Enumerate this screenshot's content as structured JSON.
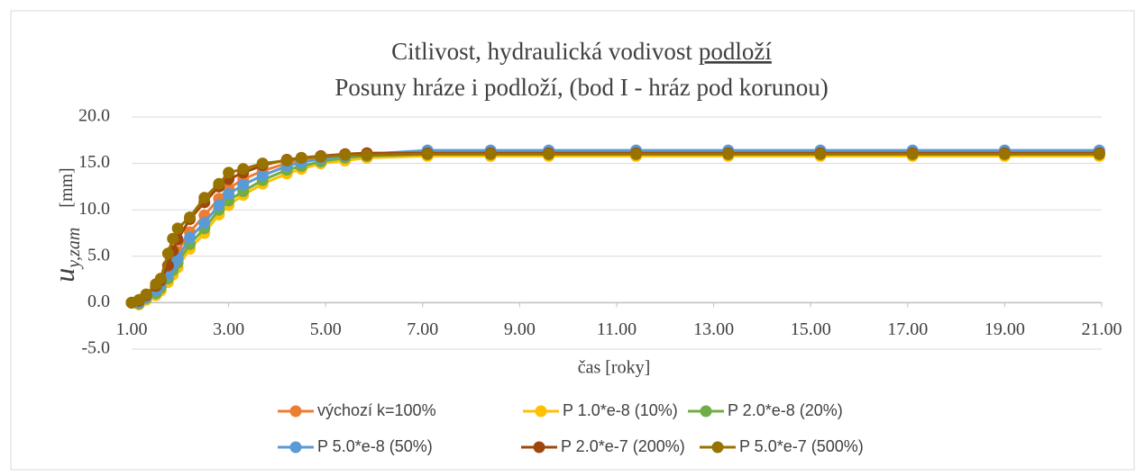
{
  "chart_data": {
    "type": "line",
    "title": [
      "Citlivost, hydraulická vodivost",
      "podloží"
    ],
    "subtitle": "Posuny hráze i podloží, (bod I - hráz pod korunou)",
    "xlabel": "čas [roky]",
    "ylabel": "u",
    "ylabel_sub": "y,zam",
    "ylabel_unit": "[mm]",
    "x": [
      1.0,
      1.15,
      1.3,
      1.5,
      1.6,
      1.75,
      1.85,
      1.95,
      2.2,
      2.5,
      2.8,
      3.0,
      3.3,
      3.7,
      4.2,
      4.5,
      4.9,
      5.4,
      5.85,
      7.1,
      8.4,
      9.6,
      11.4,
      13.3,
      15.2,
      17.1,
      19.0,
      20.95
    ],
    "series": [
      {
        "name": "výchozí k=100%",
        "color": "#ED7D31",
        "values": [
          0,
          0.1,
          0.7,
          1.6,
          2.3,
          3.5,
          4.6,
          5.5,
          7.6,
          9.4,
          11.2,
          12.3,
          13.3,
          14.2,
          15.0,
          15.4,
          15.7,
          16.0,
          16.1,
          16.2,
          16.2,
          16.2,
          16.2,
          16.2,
          16.2,
          16.2,
          16.2,
          16.2
        ]
      },
      {
        "name": "P 1.0*e-8 (10%)",
        "color": "#FFC000",
        "values": [
          0,
          -0.2,
          0.3,
          0.8,
          1.3,
          2.2,
          3.0,
          3.8,
          5.8,
          7.5,
          9.5,
          10.5,
          11.6,
          12.8,
          13.9,
          14.4,
          15.0,
          15.3,
          15.6,
          15.8,
          15.8,
          15.8,
          15.8,
          15.8,
          15.8,
          15.8,
          15.8,
          15.8
        ]
      },
      {
        "name": "P 2.0*e-8 (20%)",
        "color": "#70AD47",
        "values": [
          0,
          -0.1,
          0.5,
          1.0,
          1.6,
          2.6,
          3.5,
          4.3,
          6.3,
          8.0,
          10.0,
          11.0,
          12.0,
          13.2,
          14.3,
          14.7,
          15.2,
          15.6,
          15.8,
          16.0,
          16.0,
          16.0,
          16.0,
          16.0,
          16.0,
          16.0,
          16.0,
          16.0
        ]
      },
      {
        "name": "P 5.0*e-8 (50%)",
        "color": "#5B9BD5",
        "values": [
          0,
          0,
          0.6,
          1.3,
          2.0,
          3.0,
          4.0,
          4.8,
          7.0,
          8.6,
          10.5,
          11.7,
          12.7,
          13.7,
          14.7,
          15.1,
          15.5,
          15.8,
          16.0,
          16.4,
          16.4,
          16.4,
          16.4,
          16.4,
          16.4,
          16.4,
          16.4,
          16.4
        ]
      },
      {
        "name": "P 2.0*e-7 (200%)",
        "color": "#9E480E",
        "values": [
          0,
          0.2,
          0.8,
          1.8,
          2.4,
          4.0,
          5.6,
          6.8,
          9.0,
          10.8,
          12.5,
          13.3,
          14.0,
          14.8,
          15.4,
          15.6,
          15.8,
          16.0,
          16.1,
          16.1,
          16.1,
          16.1,
          16.1,
          16.1,
          16.1,
          16.1,
          16.1,
          16.1
        ]
      },
      {
        "name": "P 5.0*e-7 (500%)",
        "color": "#997300",
        "values": [
          0,
          0.3,
          0.9,
          2.0,
          2.6,
          5.3,
          6.9,
          8.0,
          9.2,
          11.3,
          12.8,
          14.0,
          14.4,
          15.0,
          15.3,
          15.6,
          15.7,
          15.9,
          15.9,
          16.0,
          16.0,
          16.0,
          16.0,
          16.0,
          16.0,
          16.0,
          16.0,
          16.0
        ]
      }
    ],
    "xlim": [
      1,
      21
    ],
    "xticks": [
      {
        "value": 1,
        "label": "1.00"
      },
      {
        "value": 3,
        "label": "3.00"
      },
      {
        "value": 5,
        "label": "5.00"
      },
      {
        "value": 7,
        "label": "7.00"
      },
      {
        "value": 9,
        "label": "9.00"
      },
      {
        "value": 11,
        "label": "11.00"
      },
      {
        "value": 13,
        "label": "13.00"
      },
      {
        "value": 15,
        "label": "15.00"
      },
      {
        "value": 17,
        "label": "17.00"
      },
      {
        "value": 19,
        "label": "19.00"
      },
      {
        "value": 21,
        "label": "21.00"
      }
    ],
    "ylim": [
      -5,
      20
    ],
    "yticks": [
      {
        "value": -5,
        "label": "-5.0"
      },
      {
        "value": 0,
        "label": "0.0"
      },
      {
        "value": 5,
        "label": "5.0"
      },
      {
        "value": 10,
        "label": "10.0"
      },
      {
        "value": 15,
        "label": "15.0"
      },
      {
        "value": 20,
        "label": "20.0"
      }
    ],
    "grid": true,
    "legend": "bottom"
  }
}
